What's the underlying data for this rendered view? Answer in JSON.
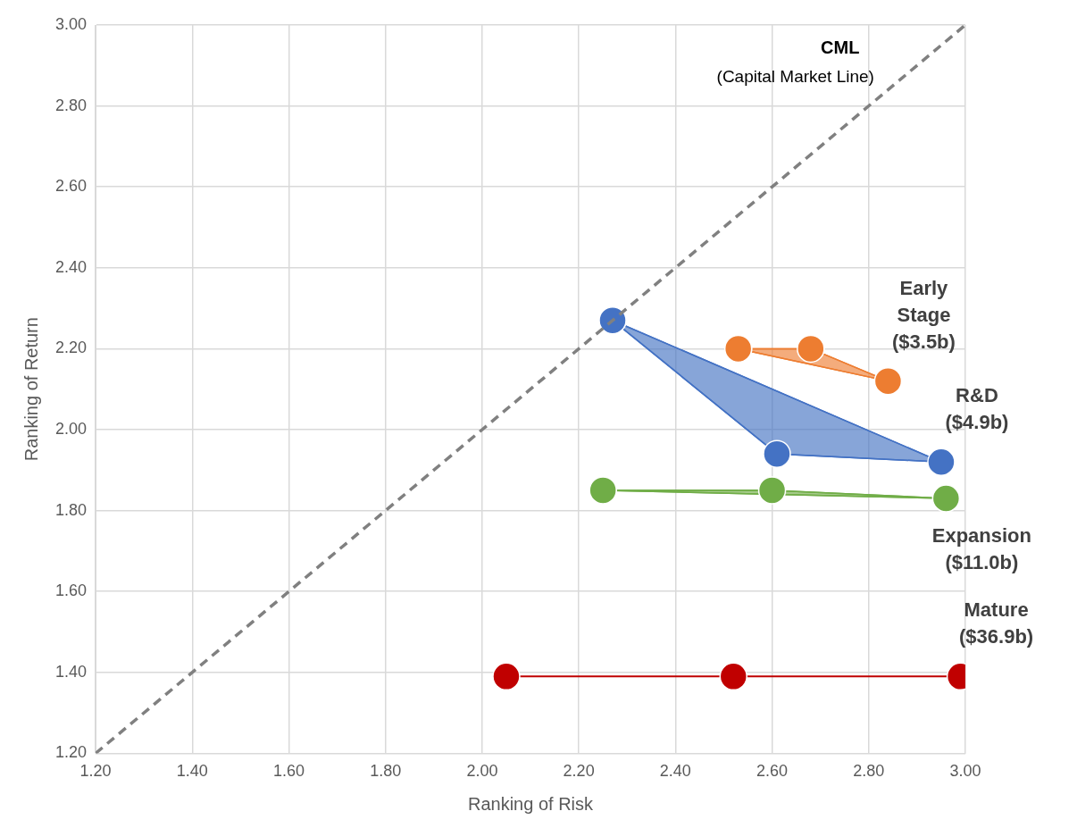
{
  "chart_data": {
    "type": "area",
    "xlabel": "Ranking of Risk",
    "ylabel": "Ranking of Return",
    "xlim": [
      1.2,
      3.0
    ],
    "ylim": [
      1.2,
      3.0
    ],
    "xticks": [
      {
        "value": 1.2,
        "label": "1.20"
      },
      {
        "value": 1.4,
        "label": "1.40"
      },
      {
        "value": 1.6,
        "label": "1.60"
      },
      {
        "value": 1.8,
        "label": "1.80"
      },
      {
        "value": 2.0,
        "label": "2.00"
      },
      {
        "value": 2.2,
        "label": "2.20"
      },
      {
        "value": 2.4,
        "label": "2.40"
      },
      {
        "value": 2.6,
        "label": "2.60"
      },
      {
        "value": 2.8,
        "label": "2.80"
      },
      {
        "value": 3.0,
        "label": "3.00"
      }
    ],
    "yticks": [
      {
        "value": 1.2,
        "label": "1.20"
      },
      {
        "value": 1.4,
        "label": "1.40"
      },
      {
        "value": 1.6,
        "label": "1.60"
      },
      {
        "value": 1.8,
        "label": "1.80"
      },
      {
        "value": 2.0,
        "label": "2.00"
      },
      {
        "value": 2.2,
        "label": "2.20"
      },
      {
        "value": 2.4,
        "label": "2.40"
      },
      {
        "value": 2.6,
        "label": "2.60"
      },
      {
        "value": 2.8,
        "label": "2.80"
      },
      {
        "value": 3.0,
        "label": "3.00"
      }
    ],
    "grid": true,
    "legend": false,
    "marker": "circle",
    "annotations": [
      "(Capital Market Line)"
    ],
    "series": [
      {
        "name": "CML",
        "type": "line",
        "line_style": "dashed",
        "marker": "none",
        "color": "#808080",
        "x": [
          1.2,
          3.0
        ],
        "values": [
          1.2,
          3.0
        ]
      },
      {
        "name": "Early Stage ($3.5b)",
        "color": "#ed7d31",
        "x": [
          2.53,
          2.68,
          2.84,
          2.53
        ],
        "values": [
          2.2,
          2.2,
          2.12,
          2.2
        ]
      },
      {
        "name": "R&D ($4.9b)",
        "color": "#4472c4",
        "x": [
          2.27,
          2.61,
          2.95,
          2.27
        ],
        "values": [
          2.27,
          1.94,
          1.92,
          2.27
        ]
      },
      {
        "name": "Expansion ($11.0b)",
        "color": "#70ad47",
        "x": [
          2.25,
          2.6,
          2.96,
          2.25
        ],
        "values": [
          1.85,
          1.85,
          1.83,
          1.85
        ]
      },
      {
        "name": "Mature ($36.9b)",
        "type": "line",
        "color": "#c00000",
        "x": [
          2.05,
          2.52,
          2.99
        ],
        "values": [
          1.39,
          1.39,
          1.39
        ]
      }
    ]
  }
}
